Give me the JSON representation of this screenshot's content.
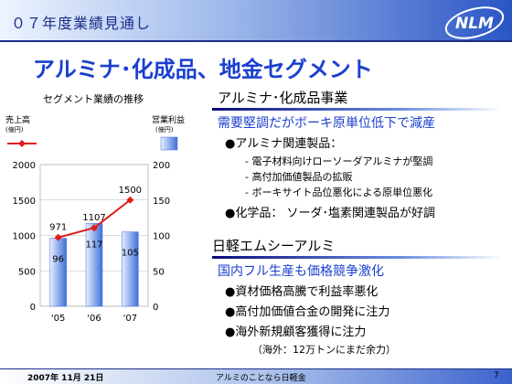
{
  "header": {
    "title": "０７年度業績見通し",
    "logo_text": "NLM"
  },
  "slide_title": "アルミナ･化成品、地金セグメント",
  "chart_data": {
    "type": "bar+line",
    "title": "セグメント業績の推移",
    "categories": [
      "'05",
      "'06",
      "'07"
    ],
    "left_axis": {
      "label_lines": [
        "売上高",
        "(億円)"
      ],
      "ticks": [
        0,
        500,
        1000,
        1500,
        2000
      ],
      "ylim": [
        0,
        2000
      ]
    },
    "right_axis": {
      "label_lines": [
        "営業利益",
        "(億円)"
      ],
      "ticks": [
        0,
        50,
        100,
        150,
        200
      ],
      "ylim": [
        0,
        200
      ]
    },
    "series": [
      {
        "name": "売上高",
        "kind": "line",
        "axis": "left",
        "values": [
          971,
          1107,
          1500
        ],
        "labels": [
          "971",
          "1107",
          "1500"
        ]
      },
      {
        "name": "営業利益",
        "kind": "bar",
        "axis": "right",
        "values": [
          96,
          117,
          105
        ],
        "labels": [
          "96",
          "117",
          "105"
        ]
      }
    ],
    "colors": {
      "line": "#e21b1b",
      "bar_light": "#e8efff",
      "bar_dark": "#3f6fd9"
    }
  },
  "section1": {
    "title": "アルミナ･化成品事業",
    "subtitle": "需要堅調だがボーキ原単位低下で減産",
    "items": [
      {
        "text": "●アルミナ関連製品："
      },
      {
        "text": "- 電子材料向けローソーダアルミナが堅調"
      },
      {
        "text": "- 高付加価値製品の拡販"
      },
      {
        "text": "- ボーキサイト品位悪化による原単位悪化"
      },
      {
        "text": "●化学品： ソーダ･塩素関連製品が好調"
      }
    ]
  },
  "section2": {
    "title": "日軽エムシーアルミ",
    "subtitle": "国内フル生産も価格競争激化",
    "items": [
      {
        "text": "●資材価格高騰で利益率悪化"
      },
      {
        "text": "●高付加価値合金の開発に注力"
      },
      {
        "text": "●海外新規顧客獲得に注力"
      },
      {
        "text": "（海外：12万トンにまだ余力）"
      }
    ]
  },
  "footer": {
    "date": "2007年 11月 21日",
    "center": "アルミのことなら日軽金",
    "page": "7"
  }
}
